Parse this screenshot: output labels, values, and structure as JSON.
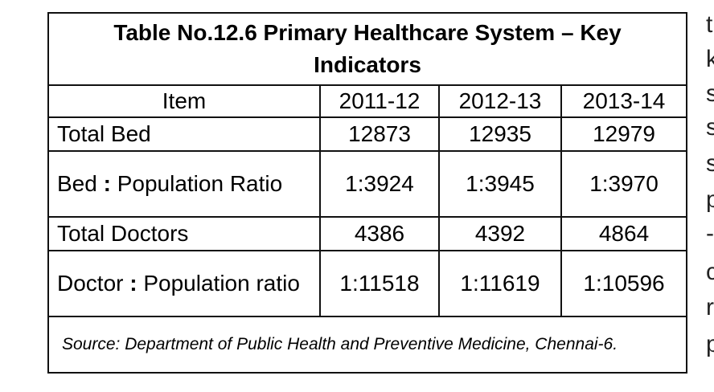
{
  "table": {
    "title": "Table No.12.6 Primary Healthcare System – Key Indicators",
    "header": {
      "item": "Item",
      "years": [
        "2011-12",
        "2012-13",
        "2013-14"
      ]
    },
    "rows": [
      {
        "label": "Total Bed",
        "values": [
          "12873",
          "12935",
          "12979"
        ]
      },
      {
        "label_a": "Bed",
        "colon": ":",
        "label_b": "Population Ratio",
        "values": [
          "1:3924",
          "1:3945",
          "1:3970"
        ]
      },
      {
        "label": "Total Doctors",
        "values": [
          "4386",
          "4392",
          "4864"
        ]
      },
      {
        "label_a": "Doctor",
        "colon": ":",
        "label_b": "Population ratio",
        "values": [
          "1:11518",
          "1:11619",
          "1:10596"
        ]
      }
    ],
    "source": "Source: Department of Public Health and Preventive Medicine, Chennai-6."
  },
  "side_text": [
    "t",
    "k",
    "s",
    "s",
    "s",
    "p",
    "-",
    "c",
    "r",
    "p"
  ]
}
